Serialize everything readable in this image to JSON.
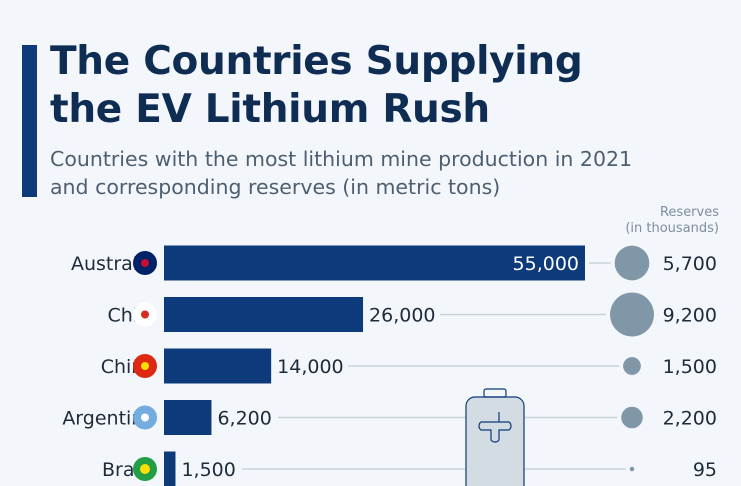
{
  "title_line1": "The Countries Supplying",
  "title_line2": "the EV Lithium Rush",
  "subtitle_line1": "Countries with the most lithium mine production in 2021",
  "subtitle_line2": "and corresponding reserves (in metric tons)",
  "reserves_label_line1": "Reserves",
  "reserves_label_line2": "(in thousands)",
  "colors": {
    "bar": "#0d3a7b",
    "bubble": "#7f97a6",
    "line": "#c9d3dc"
  },
  "chart_data": {
    "type": "bar",
    "title": "The Countries Supplying the EV Lithium Rush",
    "categories": [
      "Australia",
      "Chile",
      "China",
      "Argentina",
      "Brazil"
    ],
    "series": [
      {
        "name": "Mine production 2021 (metric tons)",
        "values": [
          55000,
          26000,
          14000,
          6200,
          1500
        ],
        "labels": [
          "55,000",
          "26,000",
          "14,000",
          "6,200",
          "1,500"
        ]
      },
      {
        "name": "Reserves (in thousands)",
        "values": [
          5700,
          9200,
          1500,
          2200,
          95
        ],
        "labels": [
          "5,700",
          "9,200",
          "1,500",
          "2,200",
          "95"
        ]
      }
    ],
    "flags": [
      "australia-flag",
      "chile-flag",
      "china-flag",
      "argentina-flag",
      "brazil-flag"
    ]
  }
}
